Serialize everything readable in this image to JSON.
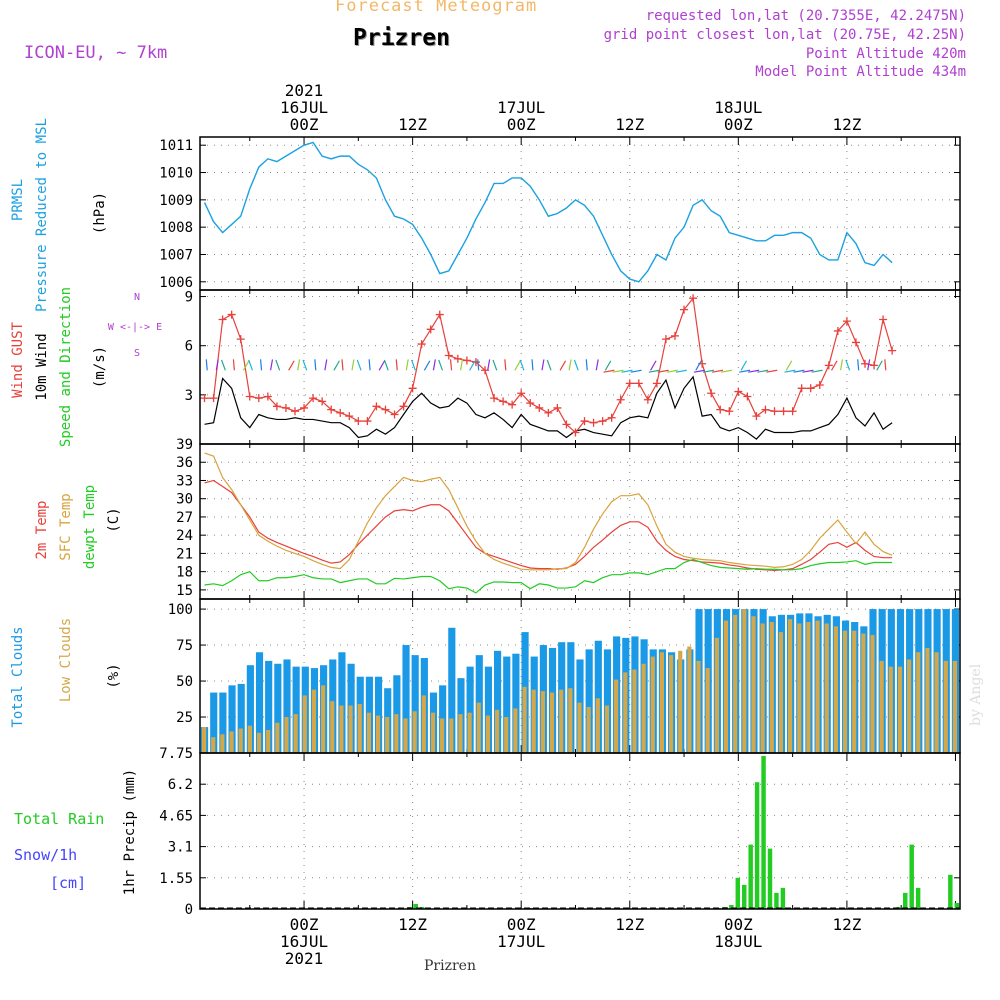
{
  "header": {
    "title": "Forecast Meteogram",
    "location": "Prizren",
    "model": "ICON-EU, ~ 7km",
    "requested": "requested lon,lat (20.7355E, 42.2475N)",
    "grid": "grid point closest lon,lat (20.75E, 42.25N)",
    "altitude": "Point Altitude 420m",
    "model_altitude": "Model Point Altitude 434m",
    "footer": "Prizren",
    "credit": "by Angel"
  },
  "colors": {
    "pressure": "#1ba1e2",
    "gust": "#e8403a",
    "wind": "#000000",
    "temp2m": "#e8403a",
    "sfc": "#d9a33b",
    "dewpt": "#22cc22",
    "total_clouds": "#1a99e6",
    "low_clouds": "#d4a84a",
    "rain": "#22cc22",
    "snow": "#4444ff",
    "purple": "#b040d0",
    "orange": "#f2b868"
  },
  "time_axis": {
    "top_labels": [
      {
        "t": 12,
        "lines": [
          "2021",
          "16JUL",
          "00Z"
        ]
      },
      {
        "t": 24,
        "lines": [
          "12Z"
        ]
      },
      {
        "t": 36,
        "lines": [
          "17JUL",
          "00Z"
        ]
      },
      {
        "t": 48,
        "lines": [
          "12Z"
        ]
      },
      {
        "t": 60,
        "lines": [
          "18JUL",
          "00Z"
        ]
      },
      {
        "t": 72,
        "lines": [
          "12Z"
        ]
      }
    ],
    "bottom_labels": [
      {
        "t": 12,
        "lines": [
          "00Z",
          "16JUL",
          "2021"
        ]
      },
      {
        "t": 24,
        "lines": [
          "12Z"
        ]
      },
      {
        "t": 36,
        "lines": [
          "00Z",
          "17JUL"
        ]
      },
      {
        "t": 48,
        "lines": [
          "12Z"
        ]
      },
      {
        "t": 60,
        "lines": [
          "00Z",
          "18JUL"
        ]
      },
      {
        "t": 72,
        "lines": [
          "12Z"
        ]
      }
    ]
  },
  "chart_data": [
    {
      "type": "line",
      "panel": "pressure",
      "ylabel_lines": [
        "PRMSL",
        "Pressure Reduced to MSL"
      ],
      "unit": "(hPa)",
      "ylim": [
        1005.7,
        1011.3
      ],
      "yticks": [
        1006,
        1007,
        1008,
        1009,
        1010,
        1011
      ],
      "ytick_labels": [
        "1006",
        "1007",
        "1008",
        "1009",
        "1010",
        "1011"
      ],
      "series": [
        {
          "values": [
            1008.9,
            1008.2,
            1007.8,
            1008.1,
            1008.4,
            1009.4,
            1010.2,
            1010.5,
            1010.4,
            1010.6,
            1010.8,
            1011.0,
            1011.1,
            1010.6,
            1010.5,
            1010.6,
            1010.6,
            1010.3,
            1010.1,
            1009.8,
            1009.0,
            1008.4,
            1008.3,
            1008.1,
            1007.6,
            1007.0,
            1006.3,
            1006.4,
            1007.0,
            1007.6,
            1008.3,
            1008.9,
            1009.6,
            1009.6,
            1009.8,
            1009.8,
            1009.5,
            1009.0,
            1008.4,
            1008.5,
            1008.7,
            1009.0,
            1008.8,
            1008.4,
            1007.7,
            1007.0,
            1006.4,
            1006.1,
            1006.0,
            1006.4,
            1007.0,
            1006.8,
            1007.6,
            1008.0,
            1008.8,
            1009.0,
            1008.6,
            1008.4,
            1007.8,
            1007.7,
            1007.6,
            1007.5,
            1007.5,
            1007.7,
            1007.7,
            1007.8,
            1007.8,
            1007.6,
            1007.0,
            1006.8,
            1006.8,
            1007.8,
            1007.4,
            1006.7,
            1006.6,
            1007.0,
            1006.7
          ]
        }
      ]
    },
    {
      "type": "line",
      "panel": "wind",
      "ylabel_lines": [
        "Wind GUST",
        "10m Wind",
        "Speed and Direction"
      ],
      "unit": "(m/s)",
      "ylim": [
        0,
        9.4
      ],
      "yticks": [
        0,
        3,
        6,
        9
      ],
      "ytick_labels": [
        "",
        "3",
        "6",
        "9"
      ],
      "compass": [
        "N",
        "W <-|-> E",
        "S"
      ],
      "series": [
        {
          "name": "Wind GUST",
          "values": [
            2.8,
            2.8,
            7.6,
            7.9,
            6.4,
            2.9,
            2.8,
            2.9,
            2.3,
            2.2,
            2.0,
            2.2,
            2.8,
            2.6,
            2.1,
            1.9,
            1.7,
            1.4,
            1.4,
            2.3,
            2.1,
            1.8,
            2.3,
            3.4,
            6.1,
            7.0,
            7.9,
            5.4,
            5.2,
            5.1,
            5.0,
            4.5,
            2.8,
            2.6,
            2.4,
            3.1,
            2.5,
            2.2,
            1.9,
            2.2,
            1.2,
            0.7,
            1.4,
            1.3,
            1.4,
            1.6,
            2.7,
            3.7,
            3.7,
            2.7,
            3.7,
            6.4,
            6.6,
            8.2,
            8.9,
            4.9,
            3.1,
            2.1,
            2.0,
            3.2,
            2.9,
            1.7,
            2.1,
            2.0,
            2.0,
            2.0,
            3.4,
            3.4,
            3.6,
            4.8,
            6.9,
            7.5,
            6.2,
            4.9,
            4.8,
            7.6,
            5.7
          ]
        },
        {
          "name": "10m Wind",
          "values": [
            1.2,
            1.3,
            4.0,
            3.4,
            1.6,
            1.0,
            1.8,
            1.6,
            1.5,
            1.5,
            1.6,
            1.5,
            1.5,
            1.4,
            1.3,
            1.3,
            1.0,
            0.4,
            0.5,
            0.9,
            0.6,
            1.0,
            1.8,
            2.6,
            3.1,
            2.5,
            2.2,
            2.3,
            2.8,
            2.5,
            1.8,
            1.6,
            1.9,
            1.5,
            1.0,
            1.8,
            1.2,
            1.0,
            0.8,
            0.8,
            0.4,
            0.8,
            0.9,
            0.7,
            0.6,
            0.5,
            1.3,
            1.6,
            1.7,
            1.6,
            3.1,
            3.9,
            2.2,
            3.4,
            4.1,
            1.7,
            1.8,
            1.0,
            0.8,
            1.0,
            0.7,
            0.3,
            0.9,
            0.7,
            0.7,
            0.7,
            0.8,
            0.8,
            1.0,
            1.2,
            1.8,
            2.8,
            1.6,
            1.1,
            1.9,
            0.9,
            1.3
          ]
        }
      ]
    },
    {
      "type": "line",
      "panel": "temperature",
      "ylabel_lines": [
        "2m Temp",
        "SFC Temp",
        "dewpt Temp"
      ],
      "unit": "(C)",
      "ylim": [
        13.5,
        39
      ],
      "yticks": [
        15,
        18,
        21,
        24,
        27,
        30,
        33,
        36,
        39
      ],
      "ytick_labels": [
        "15",
        "18",
        "21",
        "24",
        "27",
        "30",
        "33",
        "36",
        "39"
      ],
      "series": [
        {
          "name": "2m Temp",
          "values": [
            32.6,
            33.0,
            32.0,
            31.0,
            29.0,
            27.0,
            24.5,
            23.5,
            22.8,
            22.2,
            21.6,
            21.0,
            20.5,
            19.9,
            19.4,
            19.6,
            20.8,
            22.5,
            24.0,
            25.5,
            27.0,
            28.0,
            28.2,
            28.0,
            28.6,
            29.0,
            29.0,
            28.0,
            26.0,
            24.0,
            22.0,
            21.0,
            20.5,
            20.0,
            19.5,
            19.0,
            18.6,
            18.5,
            18.5,
            18.4,
            18.6,
            19.2,
            20.5,
            22.0,
            23.2,
            24.5,
            25.6,
            26.2,
            26.2,
            25.3,
            23.0,
            21.5,
            20.5,
            20.0,
            19.8,
            19.6,
            19.5,
            19.4,
            19.1,
            18.9,
            18.6,
            18.4,
            18.3,
            18.2,
            18.3,
            18.5,
            19.2,
            20.0,
            21.2,
            22.5,
            22.8,
            22.0,
            22.8,
            21.5,
            20.5,
            20.3,
            20.3
          ]
        },
        {
          "name": "SFC Temp",
          "values": [
            37.5,
            37.0,
            33.5,
            31.5,
            29.0,
            26.5,
            24.0,
            23.0,
            22.2,
            21.5,
            21.0,
            20.5,
            19.8,
            19.2,
            18.7,
            18.5,
            20.0,
            23.0,
            26.0,
            28.5,
            30.5,
            32.0,
            33.5,
            33.0,
            32.8,
            33.2,
            33.5,
            31.5,
            28.5,
            25.5,
            23.0,
            21.0,
            20.0,
            19.4,
            18.9,
            18.4,
            18.3,
            18.3,
            18.3,
            18.5,
            18.5,
            19.5,
            22.0,
            25.0,
            27.5,
            29.5,
            30.5,
            30.5,
            30.8,
            29.0,
            25.5,
            22.5,
            21.2,
            20.5,
            20.2,
            20.0,
            19.9,
            19.8,
            19.5,
            19.3,
            19.1,
            19.0,
            18.9,
            18.7,
            18.8,
            19.2,
            20.0,
            21.5,
            23.5,
            25.0,
            26.5,
            24.5,
            22.6,
            24.5,
            22.5,
            21.3,
            20.7
          ]
        },
        {
          "name": "dewpt Temp",
          "values": [
            15.8,
            16.0,
            15.7,
            16.5,
            17.5,
            18.0,
            16.5,
            16.5,
            17.0,
            17.0,
            17.2,
            17.5,
            17.0,
            16.8,
            16.8,
            16.2,
            16.5,
            16.8,
            16.8,
            16.0,
            16.0,
            16.9,
            16.8,
            17.0,
            17.2,
            17.2,
            16.5,
            15.2,
            15.5,
            15.3,
            14.5,
            15.8,
            16.3,
            16.3,
            16.2,
            16.2,
            15.2,
            16.0,
            15.8,
            15.3,
            15.3,
            15.5,
            16.5,
            16.2,
            17.0,
            17.5,
            17.5,
            17.8,
            17.8,
            17.5,
            18.0,
            18.5,
            18.5,
            19.5,
            20.0,
            19.5,
            19.0,
            18.7,
            18.6,
            18.5,
            18.4,
            18.5,
            18.4,
            18.4,
            18.3,
            18.3,
            18.5,
            19.0,
            19.3,
            19.5,
            19.5,
            19.6,
            19.8,
            19.2,
            19.5,
            19.5,
            19.5
          ]
        }
      ]
    },
    {
      "type": "bar",
      "panel": "clouds",
      "ylabel_lines": [
        "Total Clouds",
        "Low Clouds"
      ],
      "unit": "(%)",
      "ylim": [
        0,
        107
      ],
      "yticks": [
        25,
        50,
        75,
        100
      ],
      "ytick_labels": [
        "25",
        "50",
        "75",
        "100"
      ],
      "series": [
        {
          "name": "Total Clouds",
          "values": [
            18,
            42,
            42,
            47,
            48,
            61,
            70,
            64,
            62,
            65,
            60,
            60,
            59,
            61,
            65,
            70,
            62,
            53,
            53,
            53,
            45,
            54,
            75,
            68,
            66,
            42,
            47,
            87,
            52,
            60,
            68,
            60,
            71,
            67,
            69,
            84,
            67,
            75,
            73,
            77,
            77,
            65,
            72,
            78,
            72,
            81,
            80,
            81,
            79,
            72,
            72,
            70,
            65,
            72,
            100,
            100,
            100,
            100,
            100,
            100,
            100,
            100,
            95,
            96,
            96,
            97,
            97,
            95,
            96,
            95,
            92,
            91,
            88,
            100,
            100,
            100,
            100,
            100,
            100,
            100,
            100,
            100,
            100
          ]
        },
        {
          "name": "Low Clouds",
          "values": [
            18,
            11,
            13,
            15,
            17,
            19,
            14,
            16,
            21,
            25,
            27,
            40,
            44,
            47,
            36,
            33,
            33,
            34,
            28,
            26,
            25,
            27,
            24,
            29,
            40,
            28,
            24,
            24,
            27,
            28,
            35,
            26,
            30,
            25,
            31,
            46,
            44,
            43,
            42,
            44,
            45,
            35,
            32,
            38,
            33,
            51,
            56,
            58,
            62,
            67,
            70,
            68,
            71,
            74,
            64,
            59,
            80,
            92,
            96,
            100,
            95,
            90,
            91,
            84,
            93,
            90,
            91,
            92,
            90,
            88,
            85,
            85,
            83,
            82,
            64,
            60,
            60,
            65,
            70,
            73,
            70,
            64,
            64
          ]
        }
      ]
    },
    {
      "type": "bar",
      "panel": "precip",
      "ylabel_lines": [
        "1hr Precip (mm)"
      ],
      "legend_lines": [
        "Total  Rain",
        "Snow/1h",
        "[cm]"
      ],
      "ylim": [
        0,
        7.75
      ],
      "yticks": [
        0,
        1.55,
        3.1,
        4.65,
        6.2,
        7.75
      ],
      "ytick_labels": [
        "0",
        "1.55",
        "3.1",
        "4.65",
        "6.2",
        "7.75"
      ],
      "series": [
        {
          "name": "Total Rain",
          "values": [
            0,
            0,
            0,
            0,
            0,
            0,
            0,
            0,
            0,
            0,
            0,
            0,
            0,
            0,
            0,
            0,
            0,
            0,
            0,
            0,
            0,
            0,
            0,
            0,
            0,
            0,
            0,
            0,
            0,
            0,
            0,
            0,
            0.1,
            0.25,
            0.1,
            0,
            0,
            0,
            0,
            0,
            0,
            0,
            0,
            0,
            0,
            0,
            0,
            0,
            0,
            0,
            0,
            0.05,
            0,
            0,
            0,
            0,
            0,
            0,
            0,
            0,
            0,
            0,
            0,
            0,
            0,
            0,
            0,
            0,
            0,
            0,
            0,
            0,
            0,
            0,
            0,
            0,
            0,
            0,
            0,
            0,
            0.05,
            0.1,
            0.2,
            1.55,
            1.2,
            3.2,
            6.3,
            7.6,
            3.0,
            0.8,
            1.05,
            0.05,
            0.05,
            0,
            0,
            0,
            0,
            0,
            0,
            0,
            0,
            0,
            0,
            0,
            0,
            0,
            0,
            0,
            0.1,
            0.8,
            3.2,
            1.05,
            0,
            0,
            0,
            0,
            1.7,
            0.3
          ]
        }
      ]
    }
  ]
}
